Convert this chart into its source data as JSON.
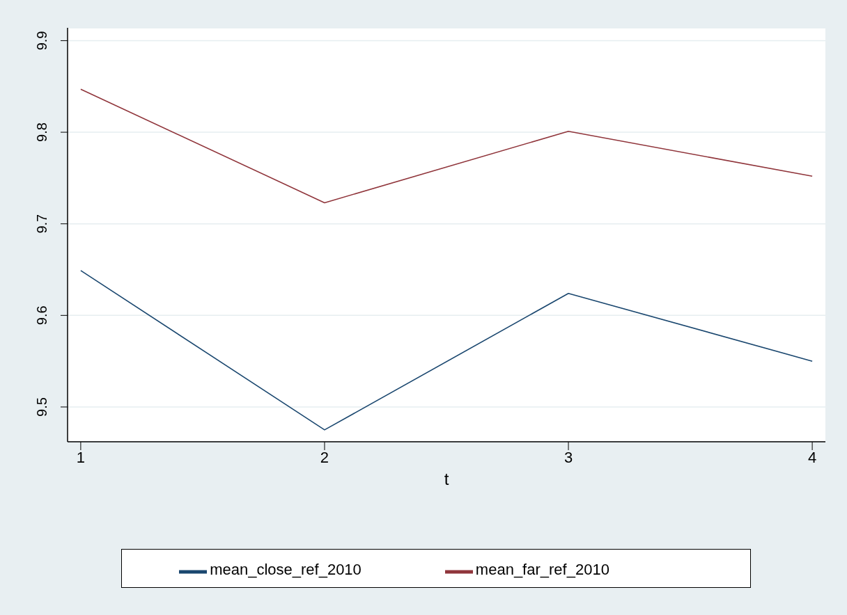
{
  "chart_data": {
    "type": "line",
    "xlabel": "t",
    "x": [
      1,
      2,
      3,
      4
    ],
    "xlim": [
      0.946,
      4.054
    ],
    "xticks": [
      1,
      2,
      3,
      4
    ],
    "ylim": [
      9.462,
      9.914
    ],
    "yticks": [
      9.5,
      9.6,
      9.7,
      9.8,
      9.9
    ],
    "grid": "y",
    "legend": "bottom",
    "series": [
      {
        "name": "mean_close_ref_2010",
        "color": "#1a476f",
        "values": [
          9.649,
          9.475,
          9.624,
          9.55
        ]
      },
      {
        "name": "mean_far_ref_2010",
        "color": "#90353b",
        "values": [
          9.847,
          9.723,
          9.801,
          9.752
        ]
      }
    ]
  }
}
